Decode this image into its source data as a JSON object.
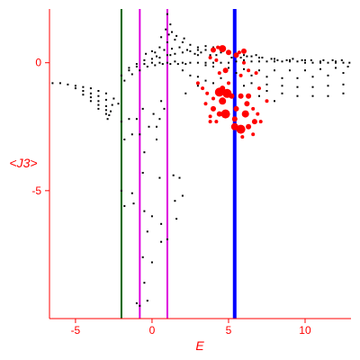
{
  "chart_data": {
    "type": "scatter",
    "xlabel": "E",
    "ylabel": "<J3>",
    "xlim": [
      -6.7,
      13.0
    ],
    "ylim": [
      -10.0,
      2.1
    ],
    "x_ticks": [
      -5,
      0,
      5,
      10
    ],
    "y_ticks": [
      0,
      -5
    ],
    "grid": false,
    "axis_color": "#ff0000",
    "vertical_lines": [
      {
        "x": -2.0,
        "color": "#006400",
        "width": 2
      },
      {
        "x": -0.8,
        "color": "#dd00dd",
        "width": 2
      },
      {
        "x": 1.0,
        "color": "#dd00dd",
        "width": 2
      },
      {
        "x": 5.4,
        "color": "#0000ff",
        "width": 4
      }
    ],
    "series": [
      {
        "color": "#000000",
        "marker": "dot",
        "description": "small black points",
        "points": [
          [
            -6.5,
            -0.8
          ],
          [
            -6.0,
            -0.8
          ],
          [
            -5.5,
            -0.85
          ],
          [
            -5.0,
            -0.9
          ],
          [
            -4.5,
            -0.95
          ],
          [
            -4.0,
            -1.0
          ],
          [
            -3.5,
            -1.1
          ],
          [
            -3.0,
            -1.2
          ],
          [
            -2.5,
            -1.4
          ],
          [
            -2.2,
            -1.6
          ],
          [
            -5.0,
            -1.0
          ],
          [
            -4.5,
            -1.1
          ],
          [
            -4.0,
            -1.2
          ],
          [
            -3.5,
            -1.3
          ],
          [
            -3.0,
            -1.45
          ],
          [
            -2.6,
            -1.65
          ],
          [
            -4.5,
            -1.25
          ],
          [
            -4.0,
            -1.35
          ],
          [
            -3.5,
            -1.5
          ],
          [
            -3.0,
            -1.7
          ],
          [
            -2.7,
            -1.9
          ],
          [
            -4.0,
            -1.5
          ],
          [
            -3.5,
            -1.65
          ],
          [
            -3.0,
            -1.85
          ],
          [
            -2.8,
            -2.05
          ],
          [
            -3.5,
            -1.8
          ],
          [
            -3.0,
            -2.0
          ],
          [
            -2.9,
            -2.2
          ],
          [
            -2.0,
            -0.5
          ],
          [
            -1.5,
            -0.3
          ],
          [
            -1.0,
            -0.15
          ],
          [
            -0.5,
            -0.05
          ],
          [
            0.0,
            0.0
          ],
          [
            0.5,
            0.0
          ],
          [
            1.0,
            0.0
          ],
          [
            1.5,
            0.05
          ],
          [
            2.0,
            0.0
          ],
          [
            2.5,
            0.0
          ],
          [
            3.0,
            0.0
          ],
          [
            3.5,
            0.0
          ],
          [
            4.0,
            0.0
          ],
          [
            4.5,
            0.0
          ],
          [
            5.0,
            0.0
          ],
          [
            5.5,
            0.05
          ],
          [
            6.0,
            0.1
          ],
          [
            6.5,
            0.05
          ],
          [
            7.0,
            0.05
          ],
          [
            7.5,
            0.05
          ],
          [
            8.0,
            0.05
          ],
          [
            8.5,
            0.05
          ],
          [
            9.0,
            0.05
          ],
          [
            9.5,
            0.05
          ],
          [
            10.0,
            0.0
          ],
          [
            10.5,
            0.0
          ],
          [
            11.0,
            0.0
          ],
          [
            11.5,
            0.0
          ],
          [
            12.0,
            0.0
          ],
          [
            12.5,
            0.0
          ],
          [
            12.9,
            0.0
          ],
          [
            -1.8,
            -0.7
          ],
          [
            -1.3,
            -0.45
          ],
          [
            -0.8,
            -0.3
          ],
          [
            -0.3,
            -0.15
          ],
          [
            0.2,
            -0.1
          ],
          [
            0.7,
            -0.05
          ],
          [
            1.2,
            -0.05
          ],
          [
            1.7,
            -0.05
          ],
          [
            2.2,
            -0.05
          ],
          [
            -1.5,
            -0.2
          ],
          [
            -1.0,
            -0.05
          ],
          [
            -0.5,
            0.1
          ],
          [
            0.0,
            0.15
          ],
          [
            0.5,
            0.2
          ],
          [
            1.0,
            0.3
          ],
          [
            1.5,
            0.35
          ],
          [
            2.0,
            0.4
          ],
          [
            2.5,
            0.45
          ],
          [
            3.0,
            0.5
          ],
          [
            3.5,
            0.5
          ],
          [
            4.0,
            0.45
          ],
          [
            4.5,
            0.4
          ],
          [
            5.0,
            0.35
          ],
          [
            5.5,
            0.3
          ],
          [
            6.0,
            0.3
          ],
          [
            6.5,
            0.25
          ],
          [
            7.0,
            0.2
          ],
          [
            8.0,
            0.15
          ],
          [
            9.0,
            0.1
          ],
          [
            10.0,
            0.1
          ],
          [
            11.0,
            0.05
          ],
          [
            12.0,
            0.05
          ],
          [
            0.5,
            0.6
          ],
          [
            1.0,
            0.8
          ],
          [
            1.5,
            0.9
          ],
          [
            2.0,
            0.8
          ],
          [
            2.5,
            0.7
          ],
          [
            3.0,
            0.6
          ],
          [
            3.5,
            0.65
          ],
          [
            4.0,
            0.6
          ],
          [
            4.5,
            0.55
          ],
          [
            0.2,
            0.4
          ],
          [
            0.8,
            0.5
          ],
          [
            1.3,
            0.55
          ],
          [
            1.8,
            0.6
          ],
          [
            2.3,
            0.5
          ],
          [
            2.8,
            0.35
          ],
          [
            0.6,
            1.0
          ],
          [
            1.1,
            1.1
          ],
          [
            1.6,
            1.05
          ],
          [
            2.1,
            0.95
          ],
          [
            1.3,
            1.2
          ],
          [
            0.9,
            1.3
          ],
          [
            1.2,
            1.5
          ],
          [
            1.0,
            1.9
          ],
          [
            1.2,
            0.3
          ],
          [
            0.0,
            0.45
          ],
          [
            -0.4,
            0.35
          ],
          [
            0.3,
            0.25
          ],
          [
            3.0,
            0.3
          ],
          [
            3.2,
            0.4
          ],
          [
            3.8,
            0.3
          ],
          [
            4.2,
            0.3
          ],
          [
            5.2,
            0.2
          ],
          [
            5.8,
            0.2
          ],
          [
            6.2,
            0.25
          ],
          [
            6.8,
            0.3
          ],
          [
            7.2,
            0.2
          ],
          [
            7.8,
            0.15
          ],
          [
            8.2,
            0.1
          ],
          [
            8.8,
            0.1
          ],
          [
            9.2,
            0.15
          ],
          [
            9.8,
            0.1
          ],
          [
            10.4,
            0.1
          ],
          [
            11.2,
            0.1
          ],
          [
            11.8,
            0.1
          ],
          [
            12.4,
            0.1
          ],
          [
            3.5,
            -0.1
          ],
          [
            4.0,
            -0.15
          ],
          [
            5.0,
            -0.2
          ],
          [
            6.0,
            -0.25
          ],
          [
            7.0,
            -0.3
          ],
          [
            8.0,
            -0.3
          ],
          [
            9.0,
            -0.3
          ],
          [
            10.0,
            -0.3
          ],
          [
            11.0,
            -0.25
          ],
          [
            12.0,
            -0.2
          ],
          [
            12.8,
            -0.15
          ],
          [
            5.5,
            -0.4
          ],
          [
            6.5,
            -0.5
          ],
          [
            7.5,
            -0.55
          ],
          [
            8.5,
            -0.6
          ],
          [
            9.5,
            -0.6
          ],
          [
            10.5,
            -0.55
          ],
          [
            11.5,
            -0.5
          ],
          [
            12.5,
            -0.4
          ],
          [
            6.5,
            -0.8
          ],
          [
            7.5,
            -0.85
          ],
          [
            8.5,
            -0.9
          ],
          [
            9.5,
            -0.95
          ],
          [
            10.5,
            -0.95
          ],
          [
            11.5,
            -0.9
          ],
          [
            12.5,
            -0.85
          ],
          [
            7.5,
            -1.1
          ],
          [
            8.5,
            -1.2
          ],
          [
            9.5,
            -1.3
          ],
          [
            10.5,
            -1.3
          ],
          [
            11.5,
            -1.3
          ],
          [
            12.5,
            -1.2
          ],
          [
            2.0,
            -0.3
          ],
          [
            2.5,
            -0.5
          ],
          [
            3.0,
            -0.55
          ],
          [
            3.5,
            -0.7
          ],
          [
            4.0,
            -0.8
          ],
          [
            4.5,
            -0.6
          ],
          [
            2.2,
            -1.2
          ],
          [
            3.0,
            -0.9
          ],
          [
            6.0,
            -0.9
          ],
          [
            7.0,
            -1.3
          ],
          [
            8.0,
            -1.5
          ],
          [
            -2.0,
            -2.3
          ],
          [
            -1.8,
            -3.0
          ],
          [
            -1.5,
            -2.2
          ],
          [
            -1.3,
            -2.8
          ],
          [
            -1.0,
            -2.2
          ],
          [
            -0.8,
            -2.8
          ],
          [
            -0.5,
            -3.5
          ],
          [
            -0.2,
            -2.5
          ],
          [
            0.3,
            -3.0
          ],
          [
            0.5,
            -2.2
          ],
          [
            0.6,
            -1.5
          ],
          [
            0.3,
            -2.5
          ],
          [
            0.1,
            -2.0
          ],
          [
            0.8,
            -1.8
          ],
          [
            -0.6,
            -1.8
          ],
          [
            -2.0,
            -5.0
          ],
          [
            -1.8,
            -5.6
          ],
          [
            -1.3,
            -5.1
          ],
          [
            -1.2,
            -5.5
          ],
          [
            -0.6,
            -4.3
          ],
          [
            -0.5,
            -5.8
          ],
          [
            -0.3,
            -6.6
          ],
          [
            0.0,
            -6.0
          ],
          [
            0.5,
            -4.5
          ],
          [
            0.6,
            -6.3
          ],
          [
            1.4,
            -4.4
          ],
          [
            1.6,
            -6.1
          ],
          [
            1.8,
            -4.5
          ],
          [
            2.0,
            -5.2
          ],
          [
            1.5,
            -5.4
          ],
          [
            -0.6,
            -7.6
          ],
          [
            -0.3,
            -9.3
          ],
          [
            0.0,
            -7.8
          ],
          [
            0.6,
            -7.0
          ],
          [
            1.0,
            -6.9
          ],
          [
            -0.5,
            -8.6
          ],
          [
            -1.0,
            -9.4
          ],
          [
            -0.8,
            -9.5
          ]
        ]
      },
      {
        "color": "#ff0000",
        "marker": "circle",
        "description": "red markers of varying size",
        "points": [
          [
            4.0,
            0.5,
            3
          ],
          [
            4.3,
            0.6,
            2
          ],
          [
            4.6,
            0.55,
            4
          ],
          [
            5.0,
            0.4,
            3
          ],
          [
            5.7,
            0.4,
            2
          ],
          [
            6.0,
            0.45,
            3
          ],
          [
            4.2,
            0.1,
            2
          ],
          [
            5.5,
            0.3,
            3
          ],
          [
            3.8,
            0.2,
            2
          ],
          [
            4.4,
            -0.4,
            2
          ],
          [
            4.8,
            -0.3,
            3
          ],
          [
            5.8,
            -0.5,
            2
          ],
          [
            6.3,
            -0.3,
            2
          ],
          [
            6.8,
            -0.4,
            2
          ],
          [
            4.6,
            -1.0,
            3
          ],
          [
            4.4,
            -1.15,
            5
          ],
          [
            4.9,
            -1.2,
            5
          ],
          [
            4.6,
            -1.5,
            4
          ],
          [
            5.2,
            -1.3,
            3
          ],
          [
            5.8,
            -1.3,
            3
          ],
          [
            6.2,
            -1.6,
            3
          ],
          [
            6.6,
            -1.8,
            2
          ],
          [
            4.0,
            -1.4,
            2
          ],
          [
            3.6,
            -1.2,
            2
          ],
          [
            3.3,
            -1.0,
            2
          ],
          [
            3.0,
            -0.8,
            2
          ],
          [
            4.0,
            -1.8,
            3
          ],
          [
            4.4,
            -2.0,
            3
          ],
          [
            4.8,
            -2.0,
            5
          ],
          [
            5.4,
            -2.2,
            3
          ],
          [
            5.4,
            -2.5,
            4
          ],
          [
            5.8,
            -2.6,
            5
          ],
          [
            6.3,
            -2.5,
            3
          ],
          [
            6.7,
            -2.3,
            3
          ],
          [
            6.9,
            -2.0,
            2
          ],
          [
            7.1,
            -2.3,
            2
          ],
          [
            5.5,
            -1.8,
            3
          ],
          [
            6.1,
            -2.0,
            4
          ],
          [
            6.3,
            -1.3,
            3
          ],
          [
            5.9,
            -2.9,
            2
          ],
          [
            6.6,
            -2.8,
            2
          ],
          [
            7.0,
            -1.0,
            2
          ],
          [
            7.5,
            -1.5,
            2
          ],
          [
            6.0,
            0.0,
            2
          ],
          [
            5.0,
            -0.8,
            2
          ],
          [
            3.5,
            -1.6,
            2
          ],
          [
            3.8,
            -2.1,
            2
          ],
          [
            4.2,
            -2.3,
            2
          ],
          [
            3.8,
            -2.3,
            2
          ]
        ]
      }
    ]
  }
}
